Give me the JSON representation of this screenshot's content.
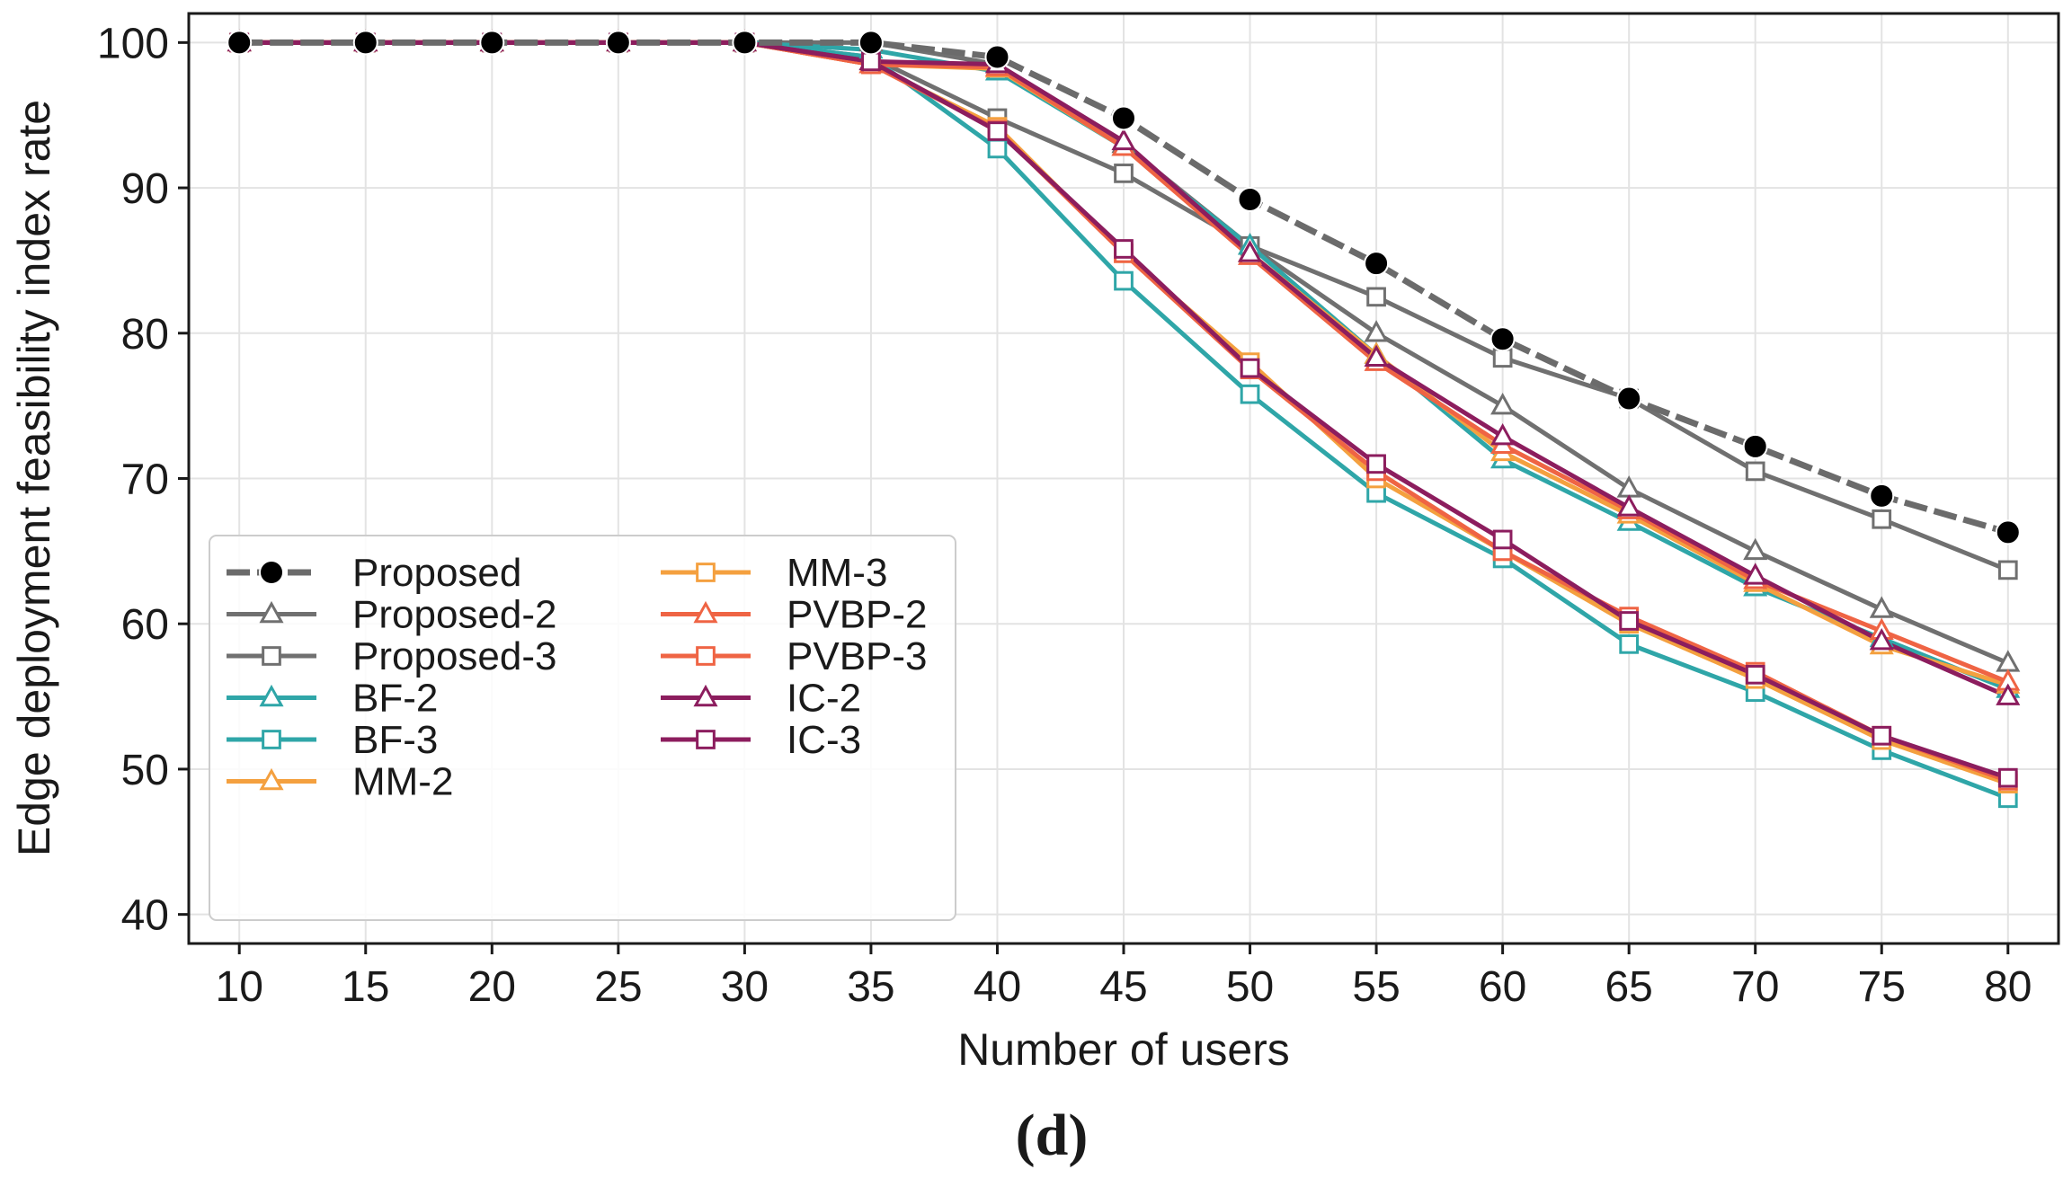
{
  "chart_data": {
    "type": "line",
    "title": "",
    "caption": "(d)",
    "xlabel": "Number of users",
    "ylabel": "Edge deployment feasibility index rate",
    "x": [
      10,
      15,
      20,
      25,
      30,
      35,
      40,
      45,
      50,
      55,
      60,
      65,
      70,
      75,
      80
    ],
    "xlim": [
      8,
      82
    ],
    "ylim": [
      38,
      102
    ],
    "xticks": [
      "10",
      "15",
      "20",
      "25",
      "30",
      "35",
      "40",
      "45",
      "50",
      "55",
      "60",
      "65",
      "70",
      "75",
      "80"
    ],
    "yticks": [
      "40",
      "50",
      "60",
      "70",
      "80",
      "90",
      "100"
    ],
    "grid": true,
    "legend_position": "bottom-left",
    "series": [
      {
        "name": "Proposed",
        "color": "#6b6b6b",
        "marker": "circle-filled",
        "dashed": true,
        "values": [
          100,
          100,
          100,
          100,
          100,
          100,
          99,
          94.8,
          89.2,
          84.8,
          79.6,
          75.5,
          72.2,
          68.8,
          66.3
        ]
      },
      {
        "name": "Proposed-2",
        "color": "#707070",
        "marker": "triangle",
        "dashed": false,
        "values": [
          100,
          100,
          100,
          100,
          100,
          100,
          98.5,
          93,
          86,
          80,
          75,
          69.3,
          65,
          61,
          57.3
        ]
      },
      {
        "name": "Proposed-3",
        "color": "#707070",
        "marker": "square",
        "dashed": false,
        "values": [
          100,
          100,
          100,
          100,
          100,
          99,
          94.8,
          91,
          86,
          82.5,
          78.3,
          75.5,
          70.5,
          67.2,
          63.7
        ]
      },
      {
        "name": "BF-2",
        "color": "#2fa6a8",
        "marker": "triangle",
        "dashed": false,
        "values": [
          100,
          100,
          100,
          100,
          100,
          99.5,
          98,
          92.8,
          86,
          78.5,
          71.3,
          67,
          62.5,
          59,
          55.5
        ]
      },
      {
        "name": "BF-3",
        "color": "#2fa6a8",
        "marker": "square",
        "dashed": false,
        "values": [
          100,
          100,
          100,
          100,
          100,
          99,
          92.7,
          83.6,
          75.8,
          69,
          64.5,
          58.6,
          55.3,
          51.3,
          48
        ]
      },
      {
        "name": "MM-2",
        "color": "#f4a03f",
        "marker": "triangle",
        "dashed": false,
        "values": [
          100,
          100,
          100,
          100,
          100,
          98.5,
          98.2,
          92.8,
          85.5,
          78.5,
          71.8,
          67.5,
          62.8,
          58.5,
          55.8
        ]
      },
      {
        "name": "MM-3",
        "color": "#f4a03f",
        "marker": "square",
        "dashed": false,
        "values": [
          100,
          100,
          100,
          100,
          100,
          98.5,
          94.2,
          85.5,
          78,
          70,
          65,
          60,
          56.2,
          52,
          49
        ]
      },
      {
        "name": "PVBP-2",
        "color": "#ef6444",
        "marker": "triangle",
        "dashed": false,
        "values": [
          100,
          100,
          100,
          100,
          100,
          98.5,
          98.3,
          92.8,
          85.3,
          78,
          72.3,
          67.8,
          63,
          59.5,
          56
        ]
      },
      {
        "name": "PVBP-3",
        "color": "#ef6444",
        "marker": "square",
        "dashed": false,
        "values": [
          100,
          100,
          100,
          100,
          100,
          98.5,
          94,
          85.5,
          77.5,
          70.5,
          65,
          60.5,
          56.7,
          52.3,
          49.2
        ]
      },
      {
        "name": "IC-2",
        "color": "#8c1d5e",
        "marker": "triangle",
        "dashed": false,
        "values": [
          100,
          100,
          100,
          100,
          100,
          98.7,
          98.5,
          93.2,
          85.5,
          78.3,
          72.9,
          68,
          63.3,
          58.8,
          55
        ]
      },
      {
        "name": "IC-3",
        "color": "#8c1d5e",
        "marker": "square",
        "dashed": false,
        "values": [
          100,
          100,
          100,
          100,
          100,
          98.7,
          93.9,
          85.8,
          77.6,
          71,
          65.8,
          60.2,
          56.5,
          52.3,
          49.4
        ]
      }
    ]
  }
}
